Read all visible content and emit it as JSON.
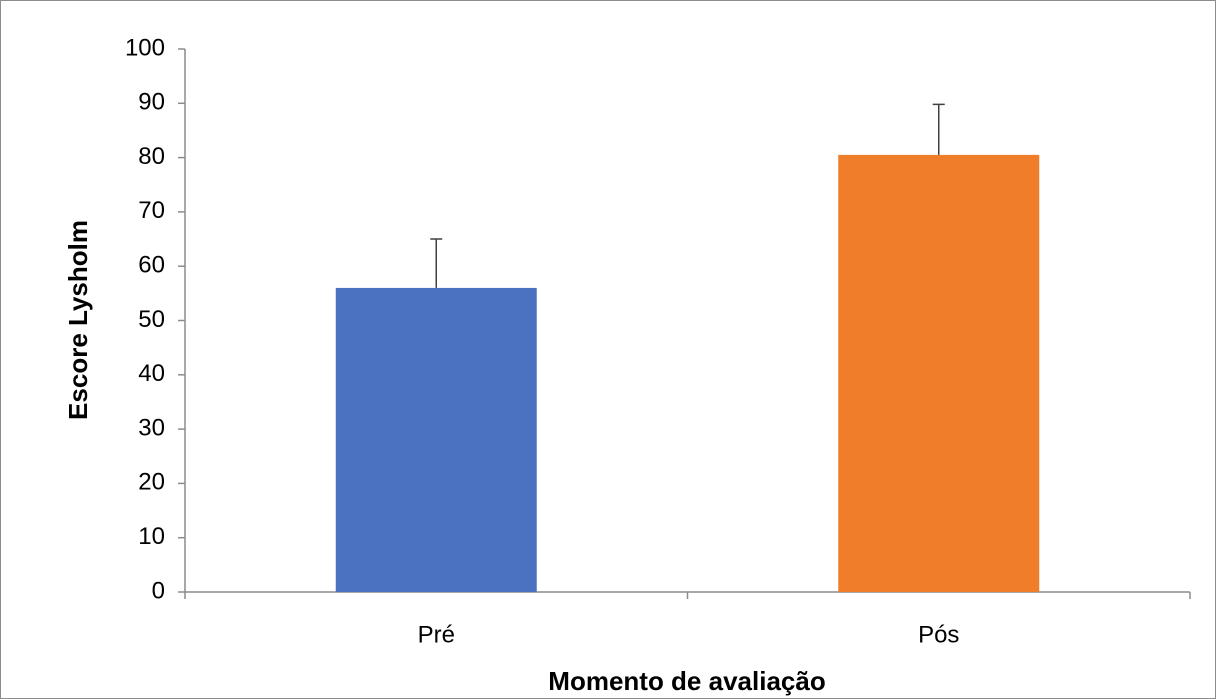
{
  "chart_data": {
    "type": "bar",
    "x_label": "Momento de avaliação",
    "y_label": "Escore Lysholm",
    "categories": [
      "Pré",
      "Pós"
    ],
    "values": [
      56,
      80.5
    ],
    "errors": [
      9,
      9.3
    ],
    "colors": [
      "#4a72c0",
      "#f07d2a"
    ],
    "ylim": [
      0,
      100
    ],
    "yticks": [
      0,
      10,
      20,
      30,
      40,
      50,
      60,
      70,
      80,
      90,
      100
    ],
    "grid": false
  }
}
